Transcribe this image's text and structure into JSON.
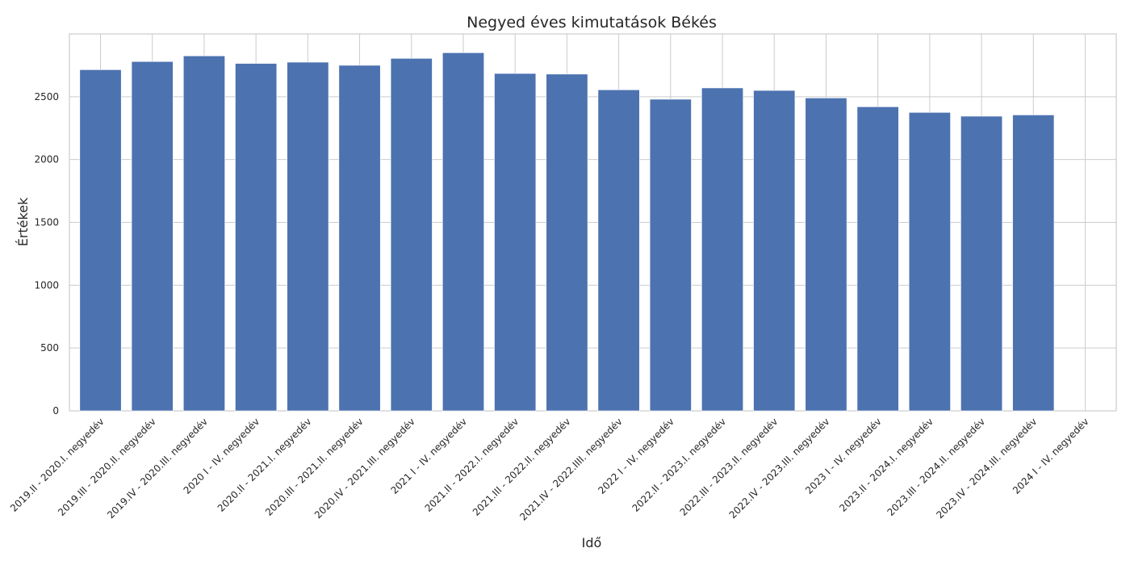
{
  "chart_data": {
    "type": "bar",
    "title": "Negyed éves kimutatások Békés",
    "xlabel": "Idő",
    "ylabel": "Értékek",
    "ylim": [
      0,
      3000
    ],
    "yticks": [
      0,
      500,
      1000,
      1500,
      2000,
      2500
    ],
    "grid": true,
    "bar_color": "#4c72b0",
    "categories": [
      "2019.II - 2020.I. negyedév",
      "2019.III - 2020.II. negyedév",
      "2019.IV - 2020.III. negyedév",
      "2020 I - IV. negyedév",
      "2020.II - 2021.I. negyedév",
      "2020.III - 2021.II. negyedév",
      "2020.IV - 2021.III. negyedév",
      "2021 I - IV. negyedév",
      "2021.II - 2022.I. negyedév",
      "2021.III - 2022.II. negyedév",
      "2021.IV - 2022.IIII. negyedév",
      "2022 I - IV. negyedév",
      "2022.II - 2023.I. negyedév",
      "2022.III - 2023.II. negyedév",
      "2022.IV - 2023.III. negyedév",
      "2023 I - IV. negyedév",
      "2023.II - 2024.I. negyedév",
      "2023.III - 2024.II. negyedév",
      "2023.IV - 2024.III. negyedév",
      "2024 I - IV. negyedév"
    ],
    "values": [
      2715,
      2780,
      2825,
      2765,
      2775,
      2750,
      2805,
      2850,
      2685,
      2680,
      2555,
      2480,
      2570,
      2550,
      2490,
      2420,
      2375,
      2345,
      2355,
      null
    ]
  }
}
